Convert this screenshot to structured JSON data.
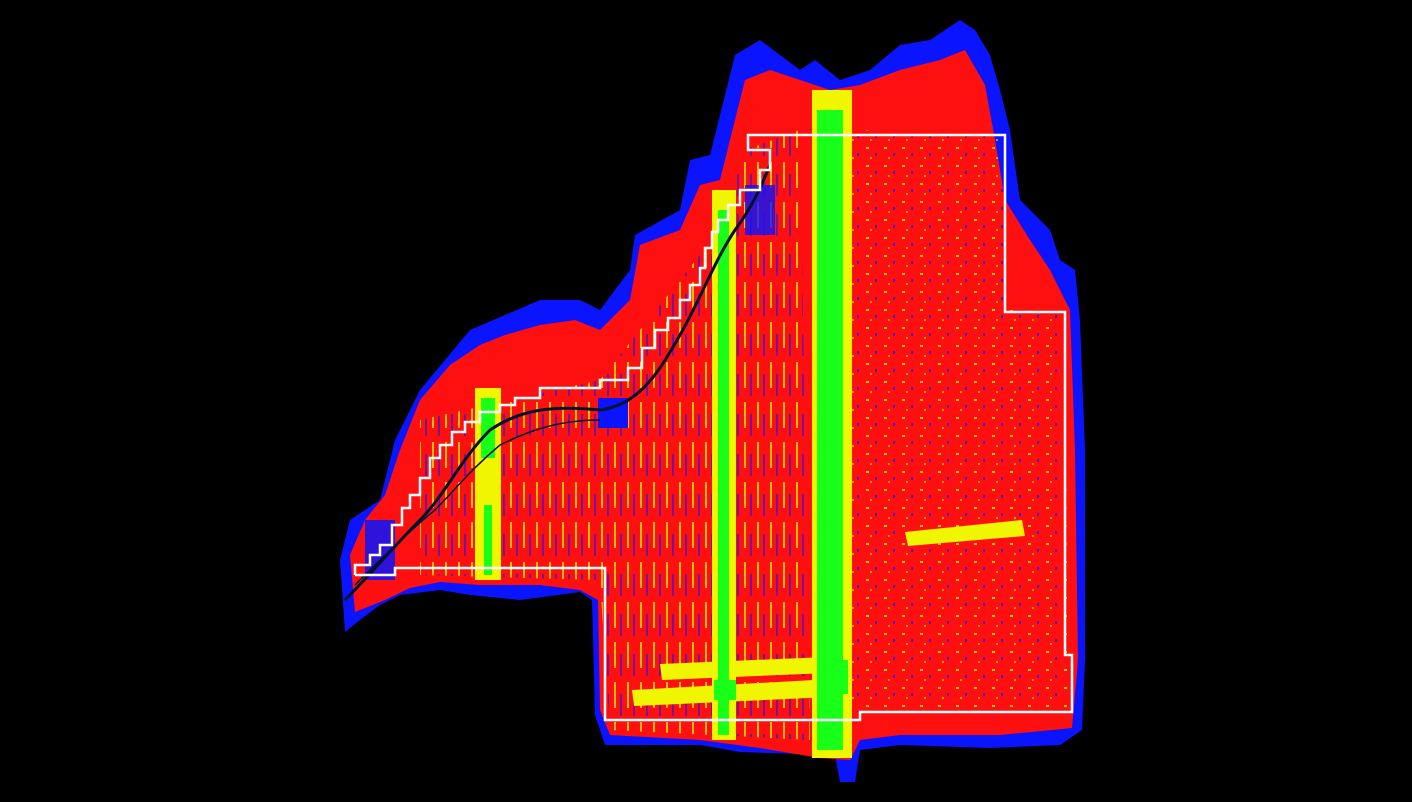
{
  "map": {
    "background_color": "#000000",
    "layers": [
      {
        "name": "outer-coverage",
        "color": "#0a14ff"
      },
      {
        "name": "survey-coverage",
        "color": "#ff1010"
      },
      {
        "name": "overlap-density-medium",
        "color": "#f0f500"
      },
      {
        "name": "overlap-density-high",
        "color": "#18ff18"
      },
      {
        "name": "project-boundary",
        "color": "#ffffff"
      },
      {
        "name": "river-centerline",
        "color": "#00122e"
      }
    ]
  }
}
